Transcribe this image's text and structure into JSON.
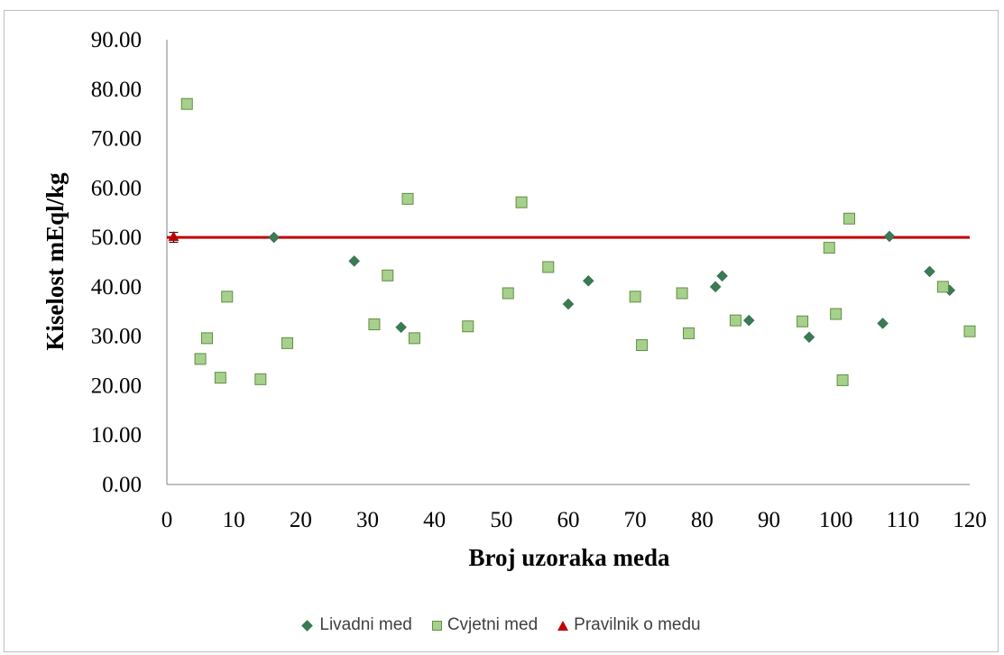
{
  "chart_data": {
    "type": "scatter",
    "xlabel": "Broj uzoraka meda",
    "ylabel": "Kiselost mEql/kg",
    "xlim": [
      0,
      120
    ],
    "ylim": [
      0,
      90
    ],
    "x_ticks": [
      "0",
      "10",
      "20",
      "30",
      "40",
      "50",
      "60",
      "70",
      "80",
      "90",
      "100",
      "110",
      "120"
    ],
    "y_ticks": [
      "0.00",
      "10.00",
      "20.00",
      "30.00",
      "40.00",
      "50.00",
      "60.00",
      "70.00",
      "80.00",
      "90.00"
    ],
    "grid": false,
    "legend_position": "bottom",
    "reference_line": {
      "y": 50,
      "color": "#c00000"
    },
    "series": [
      {
        "name": "Livadni med",
        "marker": "diamond",
        "color": "#3a7a55",
        "points": [
          [
            16,
            50.0
          ],
          [
            28,
            45.2
          ],
          [
            35,
            31.8
          ],
          [
            60,
            36.5
          ],
          [
            63,
            41.2
          ],
          [
            82,
            40.0
          ],
          [
            83,
            42.2
          ],
          [
            87,
            33.2
          ],
          [
            96,
            29.8
          ],
          [
            107,
            32.6
          ],
          [
            108,
            50.2
          ],
          [
            114,
            43.1
          ],
          [
            117,
            39.3
          ]
        ]
      },
      {
        "name": "Cvjetni med",
        "marker": "square",
        "color": "#a8d08d",
        "points": [
          [
            3,
            77.0
          ],
          [
            5,
            25.4
          ],
          [
            6,
            29.6
          ],
          [
            8,
            21.6
          ],
          [
            9,
            38.0
          ],
          [
            14,
            21.3
          ],
          [
            18,
            28.6
          ],
          [
            31,
            32.4
          ],
          [
            33,
            42.3
          ],
          [
            36,
            57.8
          ],
          [
            37,
            29.6
          ],
          [
            45,
            32.0
          ],
          [
            51,
            38.7
          ],
          [
            53,
            57.1
          ],
          [
            57,
            44.0
          ],
          [
            70,
            38.0
          ],
          [
            71,
            28.2
          ],
          [
            77,
            38.7
          ],
          [
            78,
            30.6
          ],
          [
            85,
            33.2
          ],
          [
            95,
            33.0
          ],
          [
            99,
            47.9
          ],
          [
            100,
            34.5
          ],
          [
            101,
            21.1
          ],
          [
            102,
            53.8
          ],
          [
            116,
            40.0
          ],
          [
            120,
            31.0
          ]
        ]
      },
      {
        "name": "Pravilnik o medu",
        "marker": "triangle",
        "color": "#c00000",
        "points": [
          [
            1,
            50.0
          ]
        ],
        "error": 1.0
      }
    ]
  }
}
